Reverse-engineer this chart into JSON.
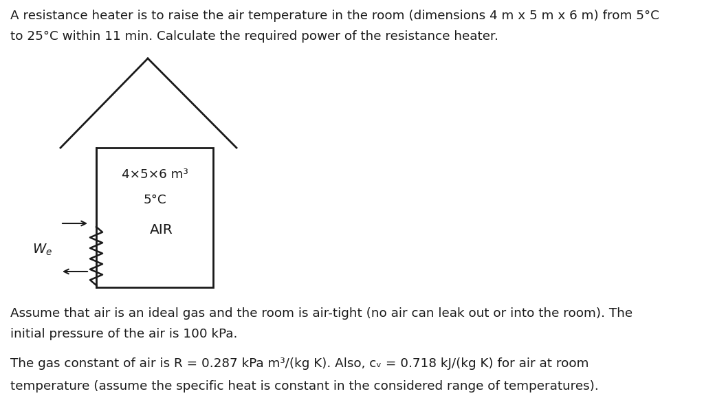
{
  "bg_color": "#ffffff",
  "text_color": "#1a1a1a",
  "title_line1": "A resistance heater is to raise the air temperature in the room (dimensions 4 m x 5 m x 6 m) from 5°C",
  "title_line2": "to 25°C within 11 min. Calculate the required power of the resistance heater.",
  "room_label1": "4×5×6 m³",
  "room_label2": "5°C",
  "room_label3": "AIR",
  "we_label": "$W_e$",
  "assume_line1": "Assume that air is an ideal gas and the room is air-tight (no air can leak out or into the room). The",
  "assume_line2": "initial pressure of the air is 100 kPa.",
  "gas_line1": "The gas constant of air is R = 0.287 kPa m³/(kg K). Also, cᵥ = 0.718 kJ/(kg K) for air at room",
  "gas_line2": "temperature (assume the specific heat is constant in the considered range of temperatures).",
  "font_size_main": 13.2,
  "font_size_room": 13.2,
  "font_size_air": 14.5
}
